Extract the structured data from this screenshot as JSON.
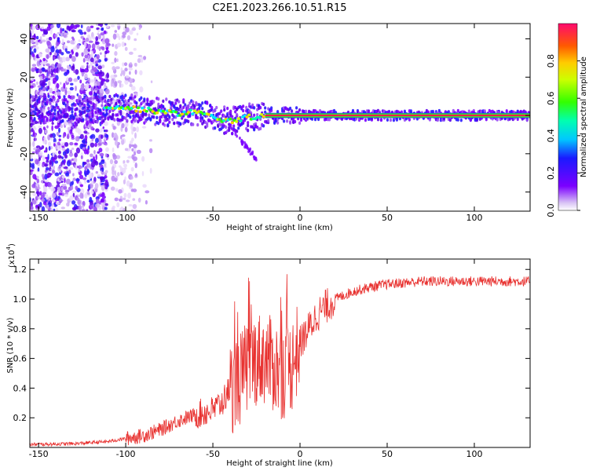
{
  "title": "C2E1.2023.266.10.51.R15",
  "chart_data": [
    {
      "type": "heatmap",
      "name": "spectrogram",
      "xlabel": "Height of straight line (km)",
      "ylabel": "Frequency (Hz)",
      "xlim": [
        -155,
        132
      ],
      "ylim": [
        -50,
        48
      ],
      "xticks": [
        -150,
        -100,
        -50,
        0,
        50,
        100
      ],
      "yticks": [
        -40,
        -20,
        0,
        20,
        40
      ],
      "xtick_labels": [
        "-150",
        "-100",
        "-50",
        "0",
        "50",
        "100"
      ],
      "ytick_labels": [
        "-40",
        "-20",
        "0",
        "20",
        "40"
      ],
      "ridge": {
        "x": [
          -112,
          -100,
          -90,
          -80,
          -70,
          -60,
          -50,
          -40,
          -30,
          -20,
          0,
          50,
          100,
          132
        ],
        "y": [
          5,
          4,
          3,
          2,
          1,
          2,
          -1,
          -3,
          -1,
          0,
          0,
          0,
          0,
          0
        ]
      },
      "colorbar": {
        "label": "Normalized spectral amplitude",
        "range": [
          0,
          1
        ],
        "ticks": [
          0.0,
          0.2,
          0.4,
          0.6,
          0.8
        ],
        "tick_labels": [
          "0.0",
          "0.2",
          "0.4",
          "0.6",
          "0.8"
        ]
      }
    },
    {
      "type": "line",
      "name": "snr",
      "xlabel": "Height of straight line (km)",
      "ylabel": "SNR (10 * v/v)",
      "yscale_label": "(x10",
      "yscale_exp": "4",
      "xlim": [
        -155,
        132
      ],
      "ylim": [
        0,
        1.27
      ],
      "xticks": [
        -150,
        -100,
        -50,
        0,
        50,
        100
      ],
      "yticks": [
        0.2,
        0.4,
        0.6,
        0.8,
        1.0,
        1.2
      ],
      "xtick_labels": [
        "-150",
        "-100",
        "-50",
        "0",
        "50",
        "100"
      ],
      "ytick_labels": [
        "0.2",
        "0.4",
        "0.6",
        "0.8",
        "1.0",
        "1.2"
      ],
      "color": "#e8312f",
      "envelope": {
        "x": [
          -155,
          -130,
          -110,
          -100,
          -90,
          -80,
          -70,
          -60,
          -50,
          -45,
          -40,
          -35,
          -30,
          -25,
          -20,
          -15,
          -10,
          -5,
          0,
          5,
          10,
          20,
          30,
          40,
          50,
          70,
          100,
          132
        ],
        "y": [
          0.02,
          0.025,
          0.04,
          0.06,
          0.08,
          0.12,
          0.18,
          0.22,
          0.25,
          0.3,
          0.4,
          0.45,
          0.55,
          0.6,
          0.6,
          0.55,
          0.5,
          0.55,
          0.7,
          0.8,
          0.9,
          1.0,
          1.05,
          1.08,
          1.1,
          1.12,
          1.12,
          1.12
        ]
      }
    }
  ]
}
